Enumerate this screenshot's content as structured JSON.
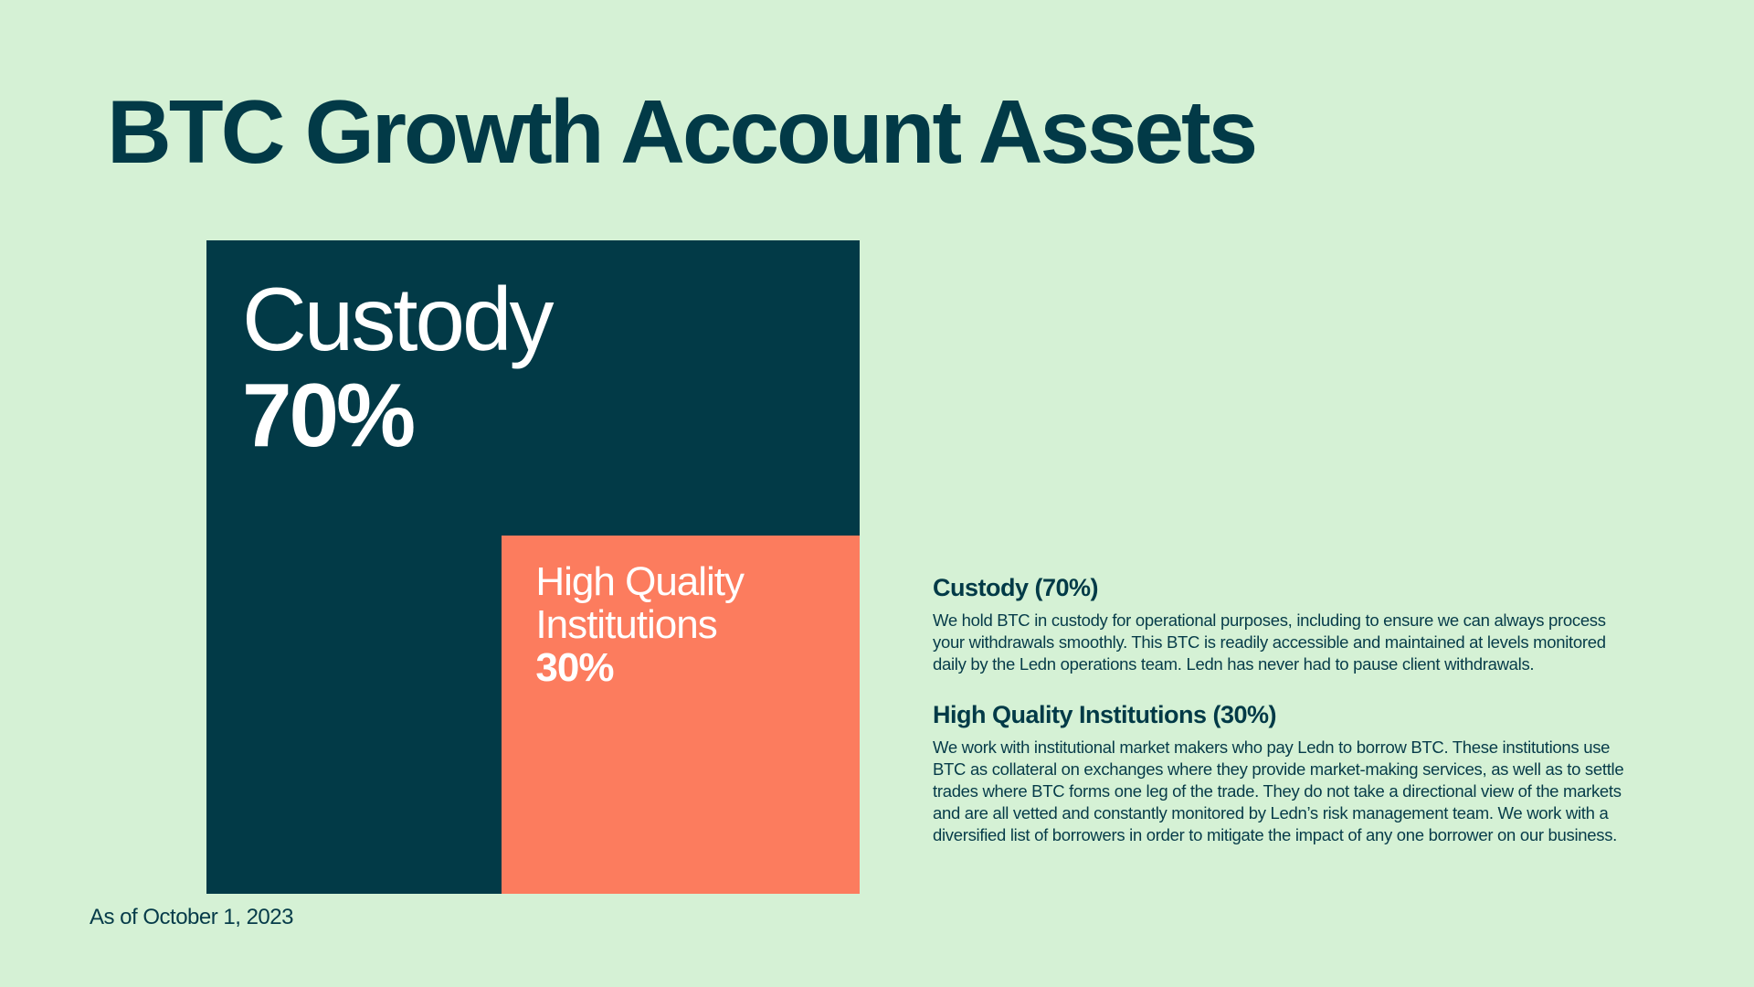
{
  "chart_data": {
    "type": "treemap",
    "title": "BTC Growth Account Assets",
    "categories": [
      "Custody",
      "High Quality Institutions"
    ],
    "values": [
      70,
      30
    ],
    "value_labels": [
      "70%",
      "30%"
    ],
    "colors": [
      "#023a47",
      "#fc7c5e"
    ]
  },
  "notes": [
    {
      "heading": "Custody (70%)",
      "text": "We hold BTC in custody for operational purposes, including to ensure we can always process your withdrawals smoothly. This BTC is readily accessible and maintained at levels monitored daily by the Ledn operations team. Ledn has never had to pause client withdrawals."
    },
    {
      "heading": "High Quality Institutions (30%)",
      "text": "We work with institutional market makers who pay Ledn to borrow BTC. These institutions use BTC as collateral on exchanges where they provide market-making services, as well as to settle trades where BTC forms one leg of the trade. They do not take a directional view of the markets and are all vetted and constantly monitored by Ledn’s risk management team. We work with a diversified list of borrowers in order to mitigate the impact of any one borrower on our business."
    }
  ],
  "footnote": "As of October 1, 2023"
}
